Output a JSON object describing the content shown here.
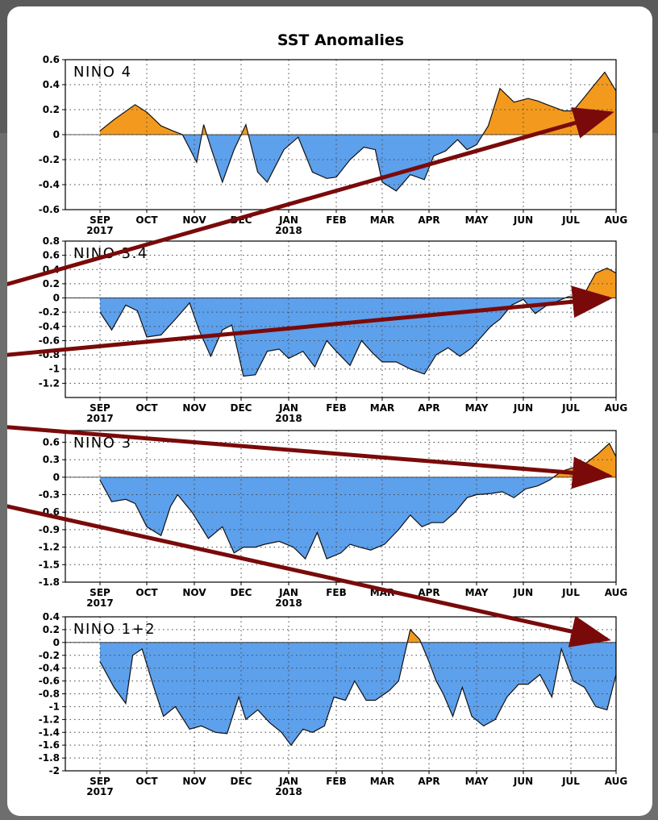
{
  "chart_data": [
    {
      "type": "area",
      "title": "SST Anomalies",
      "panel_label": "NINO 4",
      "ylim": [
        -0.6,
        0.6
      ],
      "yticks": [
        -0.6,
        -0.4,
        -0.2,
        0,
        0.2,
        0.4,
        0.6
      ],
      "ytick_labels": [
        "-0.6",
        "-0.4",
        "-0.2",
        "0",
        "0.2",
        "0.4",
        "0.6"
      ],
      "x_tick_labels": [
        "SEP",
        "OCT",
        "NOV",
        "DEC",
        "JAN",
        "FEB",
        "MAR",
        "APR",
        "MAY",
        "JUN",
        "JUL",
        "AUG"
      ],
      "year_labels": [
        {
          "after": "SEP",
          "text": "2017"
        },
        {
          "after": "JAN",
          "text": "2018"
        }
      ],
      "x": [
        0,
        0.3,
        0.75,
        1.0,
        1.3,
        1.55,
        1.75,
        2.05,
        2.2,
        2.35,
        2.6,
        2.85,
        3.1,
        3.35,
        3.55,
        3.9,
        4.2,
        4.5,
        4.8,
        5.0,
        5.3,
        5.6,
        5.85,
        6.0,
        6.3,
        6.6,
        6.9,
        7.1,
        7.35,
        7.6,
        7.8,
        8.0,
        8.25,
        8.5,
        8.8,
        9.1,
        9.3,
        9.5,
        9.85,
        10.05,
        10.3,
        10.5,
        10.75,
        11.0,
        11.25,
        11.5,
        11.7
      ],
      "values": [
        0.03,
        0.12,
        0.24,
        0.18,
        0.07,
        0.03,
        0.0,
        -0.22,
        0.08,
        -0.1,
        -0.38,
        -0.12,
        0.08,
        -0.3,
        -0.38,
        -0.12,
        -0.02,
        -0.3,
        -0.35,
        -0.34,
        -0.2,
        -0.1,
        -0.12,
        -0.38,
        -0.45,
        -0.32,
        -0.36,
        -0.17,
        -0.13,
        -0.04,
        -0.12,
        -0.08,
        0.07,
        0.37,
        0.26,
        0.29,
        0.27,
        0.24,
        0.19,
        0.19,
        0.3,
        0.39,
        0.5,
        0.35,
        0.26,
        0.27,
        0.35
      ],
      "colors": {
        "positive": "#f39a1e",
        "negative": "#5da0ec"
      }
    },
    {
      "type": "area",
      "panel_label": "NINO 3.4",
      "ylim": [
        -1.4,
        0.8
      ],
      "yticks": [
        -1.2,
        -1,
        -0.8,
        -0.6,
        -0.4,
        -0.2,
        0,
        0.2,
        0.4,
        0.6,
        0.8
      ],
      "ytick_labels": [
        "-1.2",
        "-1",
        "-0.8",
        "-0.6",
        "-0.4",
        "-0.2",
        "0",
        "0.2",
        "0.4",
        "0.6",
        "0.8"
      ],
      "x_tick_labels": [
        "SEP",
        "OCT",
        "NOV",
        "DEC",
        "JAN",
        "FEB",
        "MAR",
        "APR",
        "MAY",
        "JUN",
        "JUL",
        "AUG"
      ],
      "year_labels": [
        {
          "after": "SEP",
          "text": "2017"
        },
        {
          "after": "JAN",
          "text": "2018"
        }
      ],
      "x": [
        0,
        0.25,
        0.55,
        0.8,
        1.0,
        1.3,
        1.6,
        1.9,
        2.1,
        2.35,
        2.6,
        2.8,
        3.05,
        3.3,
        3.55,
        3.8,
        4.0,
        4.3,
        4.55,
        4.8,
        5.0,
        5.3,
        5.55,
        5.8,
        6.0,
        6.3,
        6.6,
        6.9,
        7.15,
        7.4,
        7.65,
        7.9,
        8.1,
        8.3,
        8.5,
        8.75,
        9.0,
        9.25,
        9.5,
        9.7,
        9.95,
        10.25,
        10.55,
        10.8,
        11.1,
        11.35,
        11.55,
        11.7
      ],
      "values": [
        -0.2,
        -0.45,
        -0.1,
        -0.18,
        -0.55,
        -0.52,
        -0.3,
        -0.07,
        -0.45,
        -0.82,
        -0.45,
        -0.38,
        -1.1,
        -1.08,
        -0.75,
        -0.72,
        -0.85,
        -0.75,
        -0.97,
        -0.6,
        -0.75,
        -0.95,
        -0.6,
        -0.78,
        -0.9,
        -0.9,
        -1.0,
        -1.07,
        -0.8,
        -0.7,
        -0.82,
        -0.7,
        -0.55,
        -0.4,
        -0.3,
        -0.1,
        -0.02,
        -0.22,
        -0.1,
        -0.05,
        0.02,
        0.0,
        0.35,
        0.42,
        0.35,
        0.22,
        0.38,
        0.1
      ],
      "colors": {
        "positive": "#f39a1e",
        "negative": "#5da0ec"
      }
    },
    {
      "type": "area",
      "panel_label": "NINO 3",
      "ylim": [
        -1.8,
        0.8
      ],
      "yticks": [
        -1.8,
        -1.5,
        -1.2,
        -0.9,
        -0.6,
        -0.3,
        0,
        0.3,
        0.6
      ],
      "ytick_labels": [
        "-1.8",
        "-1.5",
        "-1.2",
        "-0.9",
        "-0.6",
        "-0.3",
        "0",
        "0.3",
        "0.6"
      ],
      "x_tick_labels": [
        "SEP",
        "OCT",
        "NOV",
        "DEC",
        "JAN",
        "FEB",
        "MAR",
        "APR",
        "MAY",
        "JUN",
        "JUL",
        "AUG"
      ],
      "year_labels": [
        {
          "after": "SEP",
          "text": "2017"
        },
        {
          "after": "JAN",
          "text": "2018"
        }
      ],
      "x": [
        0,
        0.25,
        0.55,
        0.75,
        1.0,
        1.3,
        1.5,
        1.65,
        1.95,
        2.3,
        2.6,
        2.85,
        3.05,
        3.3,
        3.5,
        3.8,
        4.1,
        4.35,
        4.6,
        4.8,
        5.1,
        5.3,
        5.5,
        5.75,
        6.05,
        6.35,
        6.6,
        6.85,
        7.05,
        7.3,
        7.55,
        7.8,
        8.0,
        8.3,
        8.55,
        8.8,
        9.05,
        9.3,
        9.55,
        9.8,
        10.0,
        10.3,
        10.6,
        10.85,
        11.05,
        11.25,
        11.45,
        11.7
      ],
      "values": [
        -0.05,
        -0.42,
        -0.38,
        -0.45,
        -0.85,
        -1.0,
        -0.5,
        -0.3,
        -0.6,
        -1.05,
        -0.85,
        -1.3,
        -1.2,
        -1.2,
        -1.15,
        -1.1,
        -1.2,
        -1.4,
        -0.95,
        -1.4,
        -1.3,
        -1.15,
        -1.2,
        -1.25,
        -1.15,
        -0.9,
        -0.65,
        -0.85,
        -0.78,
        -0.78,
        -0.6,
        -0.35,
        -0.3,
        -0.28,
        -0.25,
        -0.35,
        -0.2,
        -0.15,
        -0.05,
        0.1,
        0.15,
        0.22,
        0.4,
        0.58,
        0.35,
        0.55,
        0.4,
        0.02
      ],
      "colors": {
        "positive": "#f39a1e",
        "negative": "#5da0ec"
      }
    },
    {
      "type": "area",
      "panel_label": "NINO 1+2",
      "ylim": [
        -2,
        0.4
      ],
      "yticks": [
        -2,
        -1.8,
        -1.6,
        -1.4,
        -1.2,
        -1,
        -0.8,
        -0.6,
        -0.4,
        -0.2,
        0,
        0.2,
        0.4
      ],
      "ytick_labels": [
        "-2",
        "-1.8",
        "-1.6",
        "-1.4",
        "-1.2",
        "-1",
        "-0.8",
        "-0.6",
        "-0.4",
        "-0.2",
        "0",
        "0.2",
        "0.4"
      ],
      "x_tick_labels": [
        "SEP",
        "OCT",
        "NOV",
        "DEC",
        "JAN",
        "FEB",
        "MAR",
        "APR",
        "MAY",
        "JUN",
        "JUL",
        "AUG"
      ],
      "year_labels": [
        {
          "after": "SEP",
          "text": "2017"
        },
        {
          "after": "JAN",
          "text": "2018"
        }
      ],
      "x": [
        0,
        0.3,
        0.55,
        0.7,
        0.9,
        1.15,
        1.35,
        1.6,
        1.9,
        2.15,
        2.45,
        2.7,
        2.95,
        3.1,
        3.35,
        3.6,
        3.85,
        4.05,
        4.3,
        4.5,
        4.75,
        4.95,
        5.2,
        5.4,
        5.65,
        5.85,
        6.15,
        6.35,
        6.6,
        6.8,
        7.0,
        7.15,
        7.3,
        7.5,
        7.7,
        7.9,
        8.15,
        8.4,
        8.65,
        8.9,
        9.1,
        9.35,
        9.6,
        9.8,
        10.05,
        10.3,
        10.55,
        10.8,
        11.05,
        11.3,
        11.5,
        11.7
      ],
      "values": [
        -0.3,
        -0.7,
        -0.95,
        -0.2,
        -0.1,
        -0.7,
        -1.15,
        -1.0,
        -1.35,
        -1.3,
        -1.4,
        -1.42,
        -0.85,
        -1.2,
        -1.05,
        -1.25,
        -1.4,
        -1.6,
        -1.35,
        -1.4,
        -1.3,
        -0.85,
        -0.9,
        -0.6,
        -0.9,
        -0.9,
        -0.75,
        -0.6,
        0.2,
        0.05,
        -0.3,
        -0.6,
        -0.8,
        -1.15,
        -0.7,
        -1.15,
        -1.3,
        -1.2,
        -0.85,
        -0.65,
        -0.65,
        -0.5,
        -0.85,
        -0.1,
        -0.6,
        -0.7,
        -1.0,
        -1.05,
        -0.5,
        -0.2,
        -0.25,
        0.05
      ],
      "colors": {
        "positive": "#f39a1e",
        "negative": "#5da0ec"
      }
    }
  ]
}
